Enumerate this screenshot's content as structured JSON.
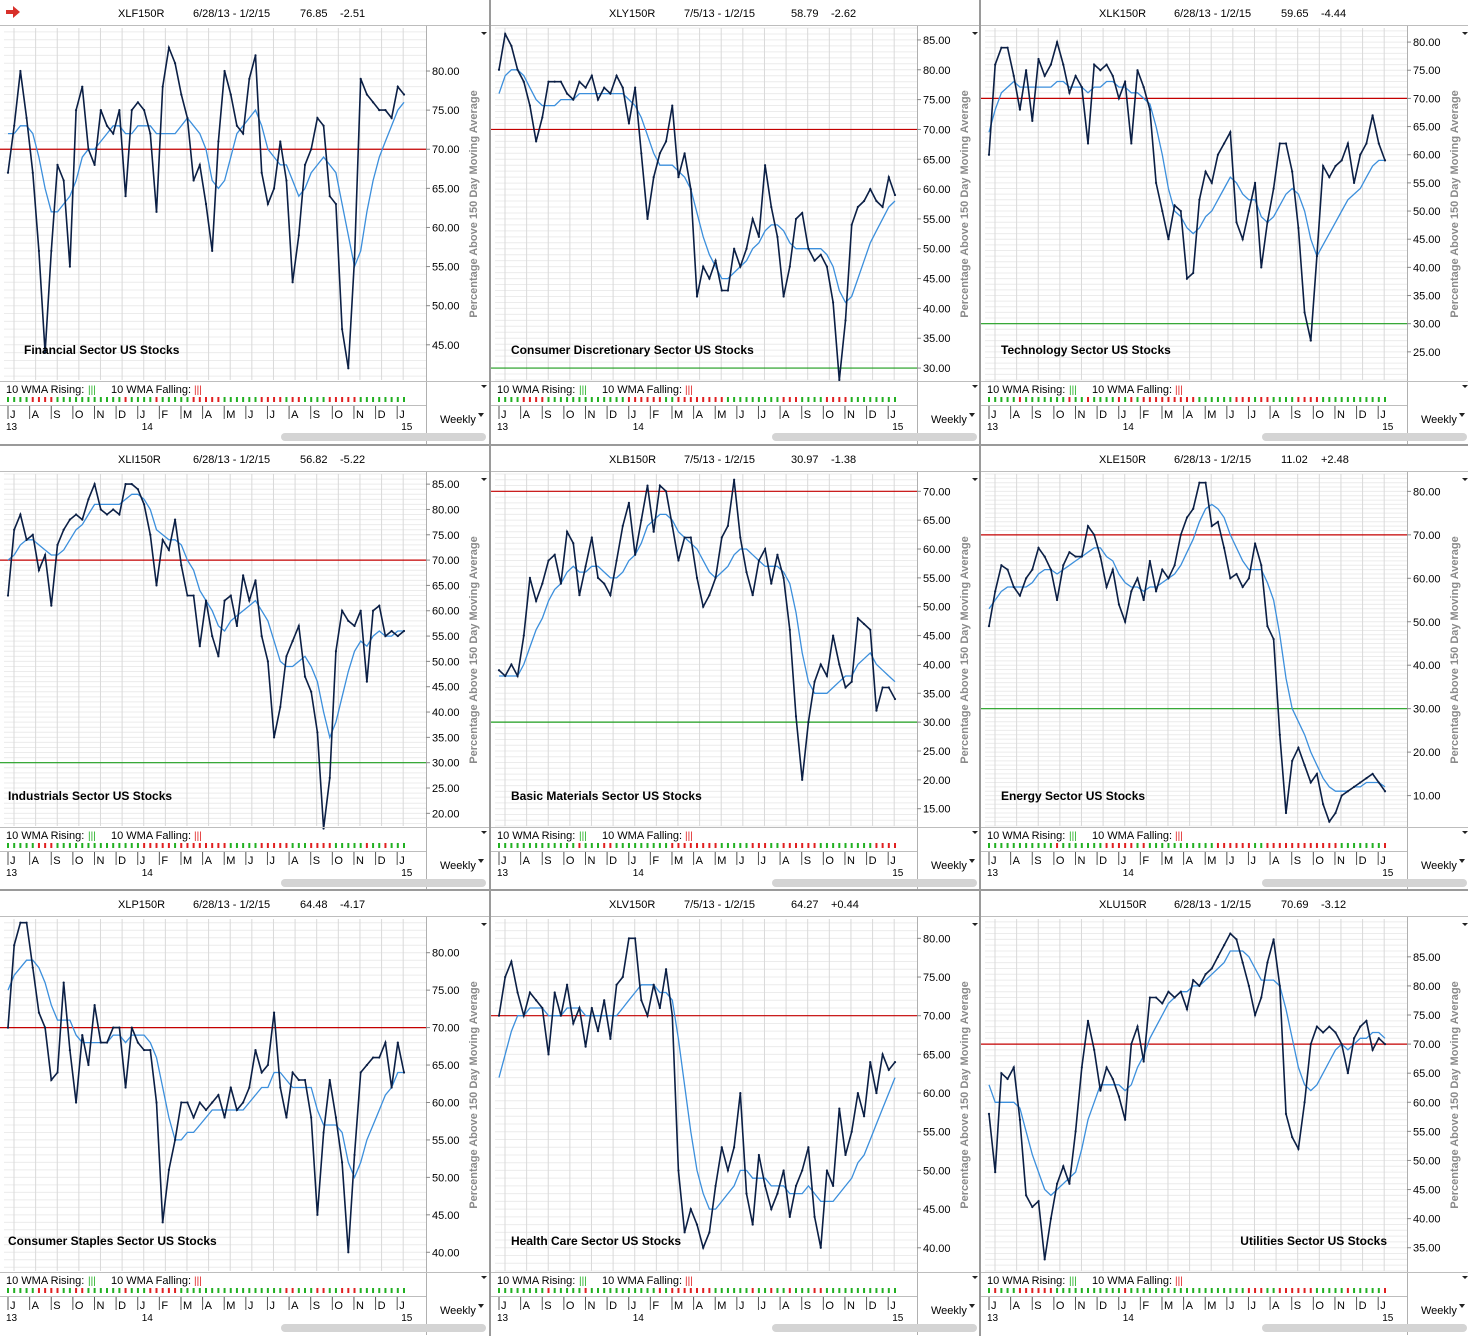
{
  "app": {
    "arrow_icon": "right-arrow-icon"
  },
  "colors": {
    "price_line": "#0b1f45",
    "ma_line": "#3c8fdc",
    "upper_line": "#c40000",
    "lower_line": "#1e9e1e",
    "rising": "#22b022",
    "falling": "#e02020"
  },
  "months_label": [
    "J",
    "A",
    "S",
    "O",
    "N",
    "D",
    "J",
    "F",
    "M",
    "A",
    "M",
    "J",
    "J",
    "A",
    "S",
    "O",
    "N",
    "D",
    "J"
  ],
  "years": [
    "13",
    "14",
    "15"
  ],
  "footer": {
    "rising_label": "10 WMA Rising:",
    "falling_label": "10 WMA Falling:",
    "rising_bars": "|||",
    "falling_bars": "|||",
    "period": "Weekly"
  },
  "chart_data": [
    {
      "type": "line",
      "symbol": "XLF150R",
      "dates": "6/28/13 - 1/2/15",
      "last": "76.85",
      "change": "-2.51",
      "caption": "Financial Sector US Stocks",
      "ylabel": "Percentage Above 150 Day Moving Average",
      "ylim": [
        40.5,
        85.5
      ],
      "yticks": [
        45,
        50,
        55,
        60,
        65,
        70,
        75,
        80
      ],
      "upper_line": 70,
      "lower_line": null,
      "values": [
        67,
        73,
        80,
        74,
        67,
        57,
        44,
        57,
        68,
        66,
        55,
        75,
        78,
        70,
        68,
        75,
        73,
        72,
        75,
        64,
        75,
        76,
        75,
        72,
        62,
        78,
        83,
        81,
        77,
        74,
        66,
        68,
        63,
        57,
        71,
        80,
        77,
        73,
        72,
        79,
        82,
        67,
        63,
        65,
        71,
        66,
        53,
        59,
        68,
        70,
        74,
        73,
        64,
        63,
        47,
        42,
        56,
        79,
        77,
        76,
        75,
        75,
        74,
        78,
        77
      ],
      "ma": [
        72,
        72,
        73,
        73,
        72,
        69,
        65,
        62,
        62,
        63,
        64,
        66,
        69,
        70,
        70,
        71,
        72,
        73,
        73,
        72,
        72,
        73,
        73,
        73,
        72,
        72,
        72,
        72,
        73,
        74,
        73,
        72,
        70,
        66,
        65,
        66,
        69,
        72,
        73,
        74,
        75,
        73,
        70,
        69,
        68,
        68,
        66,
        64,
        65,
        67,
        68,
        69,
        68,
        67,
        63,
        59,
        55,
        57,
        62,
        66,
        69,
        71,
        73,
        75,
        76
      ]
    },
    {
      "type": "line",
      "symbol": "XLY150R",
      "dates": "7/5/13 - 1/2/15",
      "last": "58.79",
      "change": "-2.62",
      "caption": "Consumer Discretionary Sector US Stocks",
      "ylabel": "Percentage Above 150 Day Moving Average",
      "ylim": [
        28,
        87
      ],
      "yticks": [
        30,
        35,
        40,
        45,
        50,
        55,
        60,
        65,
        70,
        75,
        80,
        85
      ],
      "upper_line": 70,
      "lower_line": 30,
      "values": [
        80,
        86,
        84,
        80,
        78,
        74,
        68,
        72,
        78,
        78,
        78,
        76,
        75,
        78,
        77,
        79,
        75,
        77,
        76,
        79,
        77,
        71,
        77,
        66,
        55,
        62,
        66,
        68,
        74,
        62,
        66,
        60,
        42,
        47,
        45,
        48,
        43,
        43,
        50,
        47,
        50,
        55,
        52,
        64,
        57,
        52,
        42,
        47,
        55,
        56,
        50,
        48,
        49,
        47,
        41,
        28,
        38,
        54,
        57,
        58,
        60,
        58,
        57,
        62,
        59
      ],
      "ma": [
        76,
        79,
        80,
        80,
        79,
        77,
        75,
        74,
        74,
        74,
        75,
        75,
        75,
        76,
        76,
        76,
        76,
        76,
        76,
        76,
        76,
        75,
        74,
        72,
        69,
        66,
        64,
        64,
        64,
        63,
        62,
        60,
        56,
        52,
        49,
        47,
        45,
        45,
        46,
        47,
        48,
        50,
        51,
        53,
        54,
        54,
        53,
        51,
        50,
        50,
        50,
        50,
        50,
        49,
        47,
        43,
        41,
        42,
        45,
        48,
        51,
        53,
        55,
        57,
        58
      ]
    },
    {
      "type": "line",
      "symbol": "XLK150R",
      "dates": "6/28/13 - 1/2/15",
      "last": "59.65",
      "change": "-4.44",
      "caption": "Technology Sector US Stocks",
      "ylabel": "Percentage Above 150 Day Moving Average",
      "ylim": [
        20,
        82.5
      ],
      "yticks": [
        25,
        30,
        35,
        40,
        45,
        50,
        55,
        60,
        65,
        70,
        75,
        80
      ],
      "upper_line": 70,
      "lower_line": 30,
      "values": [
        60,
        76,
        79,
        79,
        74,
        68,
        75,
        66,
        77,
        74,
        76,
        80,
        76,
        71,
        74,
        72,
        62,
        76,
        75,
        76,
        74,
        70,
        73,
        62,
        75,
        72,
        68,
        55,
        50,
        45,
        51,
        50,
        38,
        39,
        52,
        57,
        55,
        60,
        62,
        64,
        48,
        45,
        50,
        55,
        40,
        48,
        54,
        62,
        62,
        57,
        47,
        32,
        27,
        42,
        58,
        56,
        58,
        59,
        62,
        55,
        60,
        62,
        67,
        62,
        59
      ],
      "ma": [
        64,
        68,
        71,
        72,
        73,
        72,
        72,
        72,
        72,
        72,
        72,
        73,
        73,
        72,
        72,
        72,
        71,
        72,
        72,
        73,
        73,
        72,
        72,
        71,
        71,
        70,
        69,
        65,
        60,
        54,
        50,
        49,
        47,
        46,
        47,
        49,
        50,
        52,
        54,
        56,
        55,
        53,
        52,
        52,
        49,
        48,
        49,
        51,
        53,
        54,
        53,
        50,
        45,
        42,
        44,
        46,
        48,
        50,
        52,
        53,
        54,
        56,
        58,
        59,
        59
      ]
    },
    {
      "type": "line",
      "symbol": "XLI150R",
      "dates": "6/28/13 - 1/2/15",
      "last": "56.82",
      "change": "-5.22",
      "caption": "Industrials Sector US Stocks",
      "ylabel": "Percentage Above 150 Day Moving Average",
      "ylim": [
        17.5,
        87
      ],
      "yticks": [
        20,
        25,
        30,
        35,
        40,
        45,
        50,
        55,
        60,
        65,
        70,
        75,
        80,
        85
      ],
      "upper_line": 70,
      "lower_line": 30,
      "values": [
        63,
        76,
        79,
        74,
        75,
        68,
        71,
        61,
        73,
        76,
        78,
        79,
        78,
        82,
        85,
        80,
        79,
        80,
        79,
        85,
        85,
        84,
        81,
        75,
        65,
        74,
        72,
        78,
        69,
        63,
        63,
        53,
        62,
        55,
        51,
        62,
        63,
        57,
        67,
        62,
        66,
        55,
        50,
        35,
        41,
        51,
        54,
        57,
        47,
        44,
        36,
        17,
        27,
        52,
        60,
        58,
        57,
        60,
        46,
        60,
        61,
        55,
        56,
        55,
        56
      ],
      "ma": [
        70,
        71,
        73,
        74,
        74,
        73,
        72,
        71,
        71,
        72,
        74,
        76,
        77,
        79,
        81,
        81,
        81,
        81,
        81,
        82,
        83,
        83,
        82,
        80,
        76,
        75,
        74,
        74,
        73,
        70,
        68,
        64,
        62,
        60,
        57,
        56,
        58,
        59,
        60,
        61,
        62,
        60,
        58,
        54,
        50,
        49,
        49,
        50,
        51,
        49,
        46,
        40,
        35,
        38,
        43,
        48,
        52,
        54,
        53,
        55,
        56,
        55,
        55,
        56,
        56
      ]
    },
    {
      "type": "line",
      "symbol": "XLB150R",
      "dates": "7/5/13 - 1/2/15",
      "last": "30.97",
      "change": "-1.38",
      "caption": "Basic Materials Sector US Stocks",
      "ylabel": "Percentage Above 150 Day Moving Average",
      "ylim": [
        12,
        73
      ],
      "yticks": [
        15,
        20,
        25,
        30,
        35,
        40,
        45,
        50,
        55,
        60,
        65,
        70
      ],
      "upper_line": 70,
      "lower_line": 30,
      "values": [
        39,
        38,
        40,
        38,
        45,
        55,
        51,
        54,
        58,
        59,
        54,
        63,
        61,
        52,
        57,
        62,
        55,
        54,
        52,
        58,
        64,
        68,
        59,
        65,
        71,
        63,
        71,
        70,
        64,
        58,
        62,
        62,
        55,
        50,
        52,
        55,
        62,
        64,
        72,
        62,
        56,
        52,
        58,
        60,
        54,
        59,
        55,
        46,
        31,
        20,
        30,
        37,
        40,
        38,
        45,
        40,
        36,
        37,
        48,
        47,
        46,
        32,
        36,
        36,
        34
      ],
      "ma": [
        38,
        38,
        38,
        38,
        40,
        43,
        46,
        48,
        51,
        53,
        54,
        56,
        57,
        56,
        56,
        57,
        57,
        56,
        55,
        55,
        56,
        58,
        59,
        61,
        64,
        65,
        66,
        66,
        65,
        63,
        62,
        61,
        60,
        58,
        56,
        55,
        56,
        57,
        59,
        60,
        60,
        59,
        58,
        57,
        57,
        57,
        56,
        54,
        49,
        42,
        37,
        35,
        35,
        35,
        36,
        37,
        38,
        38,
        40,
        41,
        42,
        40,
        39,
        38,
        37
      ]
    },
    {
      "type": "line",
      "symbol": "XLE150R",
      "dates": "6/28/13 - 1/2/15",
      "last": "11.02",
      "change": "+2.48",
      "caption": "Energy Sector US Stocks",
      "ylabel": "Percentage Above 150 Day Moving Average",
      "ylim": [
        3,
        84
      ],
      "yticks": [
        10,
        20,
        30,
        40,
        50,
        60,
        70,
        80
      ],
      "upper_line": 70,
      "lower_line": 30,
      "values": [
        49,
        57,
        63,
        62,
        58,
        56,
        60,
        62,
        67,
        65,
        62,
        55,
        63,
        66,
        65,
        65,
        72,
        70,
        65,
        58,
        62,
        54,
        50,
        57,
        60,
        55,
        64,
        57,
        62,
        60,
        63,
        70,
        74,
        76,
        82,
        82,
        72,
        73,
        67,
        60,
        61,
        58,
        60,
        68,
        63,
        49,
        46,
        24,
        6,
        18,
        21,
        17,
        13,
        15,
        8,
        4,
        6,
        10,
        11,
        12,
        13,
        14,
        15,
        13,
        11
      ],
      "ma": [
        53,
        55,
        57,
        58,
        58,
        58,
        58,
        59,
        61,
        62,
        62,
        61,
        62,
        63,
        64,
        65,
        66,
        67,
        67,
        65,
        64,
        61,
        59,
        58,
        58,
        57,
        58,
        58,
        59,
        60,
        61,
        63,
        66,
        69,
        73,
        76,
        77,
        76,
        74,
        70,
        67,
        64,
        62,
        62,
        62,
        59,
        55,
        47,
        37,
        30,
        27,
        24,
        20,
        17,
        14,
        12,
        11,
        11,
        11,
        12,
        12,
        13,
        13,
        13,
        12
      ]
    },
    {
      "type": "line",
      "symbol": "XLP150R",
      "dates": "6/28/13 - 1/2/15",
      "last": "64.48",
      "change": "-4.17",
      "caption": "Consumer Staples Sector US Stocks",
      "ylabel": "Percentage Above 150 Day Moving Average",
      "ylim": [
        37.5,
        84.5
      ],
      "yticks": [
        40,
        45,
        50,
        55,
        60,
        65,
        70,
        75,
        80
      ],
      "upper_line": 70,
      "lower_line": null,
      "values": [
        70,
        81,
        84,
        84,
        78,
        72,
        70,
        63,
        64,
        76,
        67,
        60,
        69,
        65,
        73,
        68,
        68,
        70,
        70,
        62,
        70,
        68,
        67,
        67,
        60,
        44,
        51,
        55,
        60,
        60,
        58,
        60,
        59,
        60,
        61,
        58,
        62,
        59,
        60,
        62,
        67,
        64,
        65,
        72,
        62,
        58,
        64,
        63,
        63,
        58,
        45,
        56,
        63,
        58,
        52,
        40,
        53,
        64,
        65,
        66,
        66,
        68,
        62,
        68,
        64
      ],
      "ma": [
        75,
        77,
        78,
        79,
        79,
        78,
        76,
        73,
        71,
        71,
        71,
        69,
        68,
        68,
        68,
        68,
        68,
        69,
        69,
        68,
        69,
        69,
        69,
        68,
        66,
        62,
        58,
        55,
        55,
        56,
        56,
        57,
        58,
        59,
        59,
        59,
        59,
        59,
        59,
        60,
        61,
        62,
        62,
        64,
        64,
        63,
        62,
        62,
        62,
        62,
        59,
        57,
        57,
        57,
        56,
        52,
        50,
        52,
        55,
        57,
        59,
        61,
        62,
        64,
        64
      ]
    },
    {
      "type": "line",
      "symbol": "XLV150R",
      "dates": "7/5/13 - 1/2/15",
      "last": "64.27",
      "change": "+0.44",
      "caption": "Health Care Sector US Stocks",
      "ylabel": "Percentage Above 150 Day Moving Average",
      "ylim": [
        37,
        82.5
      ],
      "yticks": [
        40,
        45,
        50,
        55,
        60,
        65,
        70,
        75,
        80
      ],
      "upper_line": 70,
      "lower_line": null,
      "values": [
        70,
        75,
        77,
        73,
        70,
        73,
        72,
        71,
        65,
        73,
        70,
        74,
        69,
        71,
        66,
        71,
        68,
        72,
        67,
        74,
        75,
        80,
        80,
        72,
        70,
        74,
        71,
        76,
        70,
        50,
        42,
        45,
        43,
        40,
        42,
        48,
        53,
        50,
        53,
        60,
        47,
        43,
        52,
        48,
        45,
        47,
        50,
        44,
        48,
        50,
        53,
        44,
        40,
        50,
        48,
        58,
        52,
        55,
        60,
        57,
        64,
        60,
        65,
        63,
        64
      ],
      "ma": [
        62,
        65,
        68,
        70,
        70,
        71,
        71,
        71,
        70,
        70,
        70,
        71,
        71,
        71,
        70,
        70,
        70,
        70,
        70,
        70,
        71,
        72,
        73,
        74,
        74,
        74,
        73,
        73,
        72,
        67,
        61,
        55,
        50,
        47,
        45,
        45,
        46,
        47,
        48,
        50,
        50,
        49,
        49,
        49,
        48,
        48,
        48,
        47,
        47,
        47,
        48,
        47,
        46,
        46,
        46,
        47,
        48,
        49,
        51,
        52,
        54,
        56,
        58,
        60,
        62
      ]
    },
    {
      "type": "line",
      "symbol": "XLU150R",
      "dates": "6/28/13 - 1/2/15",
      "last": "70.69",
      "change": "-3.12",
      "caption": "Utilities Sector US Stocks",
      "ylabel": "Percentage Above 150 Day Moving Average",
      "ylim": [
        31,
        91.5
      ],
      "yticks": [
        35,
        40,
        45,
        50,
        55,
        60,
        65,
        70,
        75,
        80,
        85
      ],
      "upper_line": 70,
      "lower_line": null,
      "values": [
        58,
        48,
        65,
        64,
        66,
        57,
        44,
        42,
        43,
        33,
        40,
        46,
        49,
        46,
        55,
        66,
        74,
        69,
        62,
        66,
        64,
        61,
        57,
        70,
        73,
        67,
        78,
        78,
        77,
        79,
        78,
        79,
        76,
        81,
        80,
        82,
        83,
        85,
        87,
        89,
        88,
        84,
        80,
        75,
        78,
        84,
        88,
        80,
        58,
        54,
        52,
        60,
        70,
        73,
        72,
        73,
        72,
        70,
        65,
        71,
        73,
        74,
        69,
        71,
        70
      ],
      "ma": [
        63,
        60,
        60,
        60,
        60,
        59,
        55,
        51,
        48,
        45,
        44,
        45,
        46,
        47,
        48,
        52,
        57,
        60,
        63,
        63,
        63,
        63,
        62,
        63,
        66,
        68,
        71,
        73,
        75,
        77,
        78,
        79,
        79,
        80,
        80,
        81,
        82,
        83,
        84,
        86,
        86,
        86,
        85,
        83,
        81,
        81,
        81,
        80,
        76,
        71,
        66,
        63,
        62,
        63,
        65,
        67,
        69,
        70,
        69,
        70,
        71,
        71,
        72,
        72,
        71
      ]
    }
  ]
}
